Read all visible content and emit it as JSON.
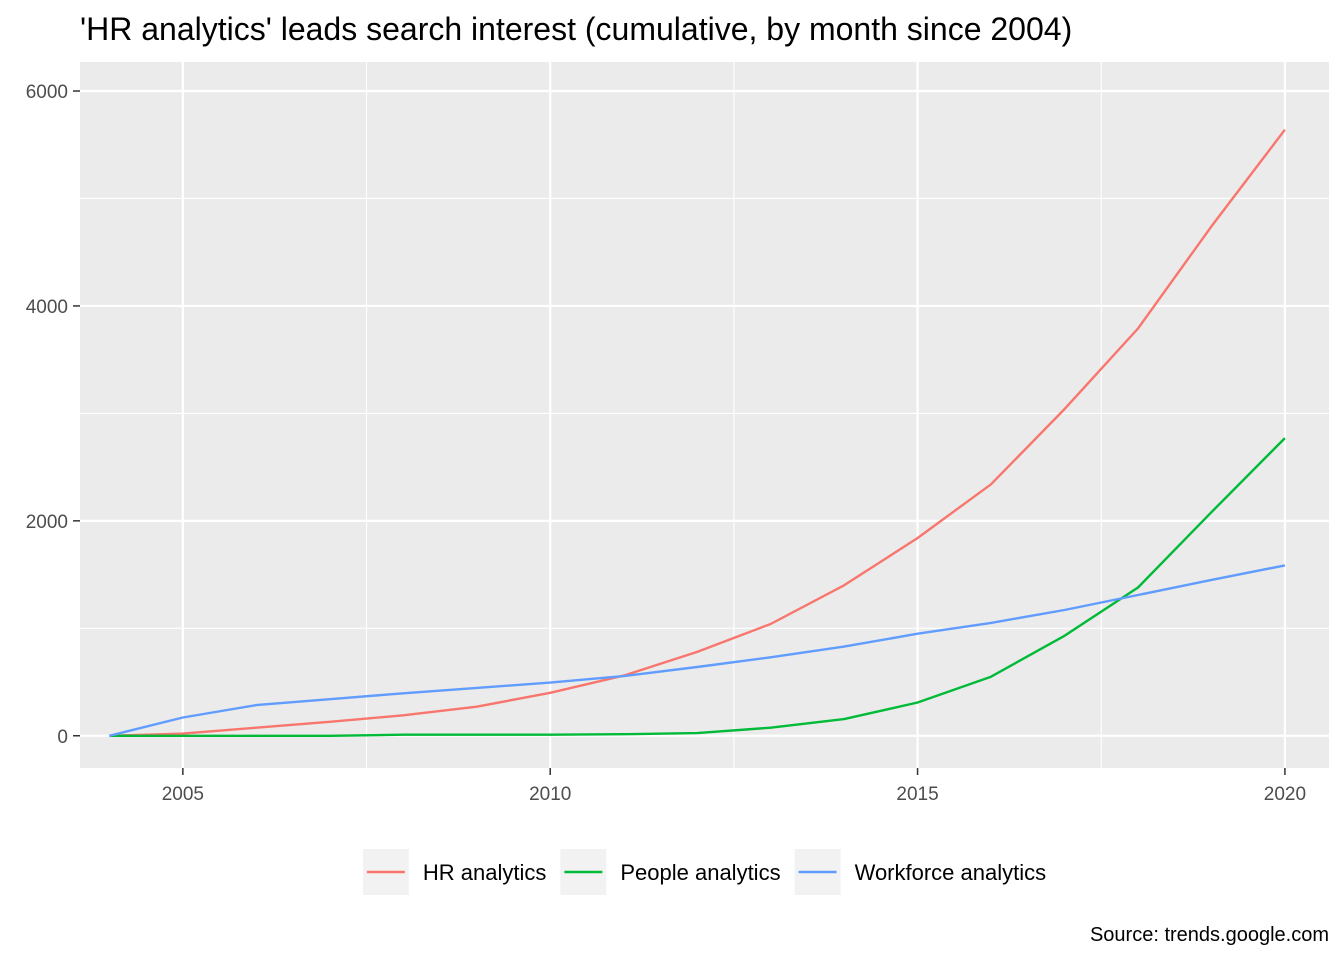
{
  "chart_data": {
    "type": "line",
    "title": "'HR analytics' leads search interest (cumulative, by month since 2004)",
    "caption": "Source: trends.google.com",
    "xlabel": "",
    "ylabel": "",
    "xlim": [
      2003.6,
      2020.6
    ],
    "ylim": [
      -300,
      6270
    ],
    "x_ticks": [
      2005,
      2010,
      2015,
      2020
    ],
    "x_tick_labels": [
      "2005",
      "2010",
      "2015",
      "2020"
    ],
    "y_ticks": [
      0,
      2000,
      4000,
      6000
    ],
    "y_tick_labels": [
      "0",
      "2000",
      "4000",
      "6000"
    ],
    "grid": true,
    "legend_position": "bottom",
    "x": [
      2004,
      2005,
      2006,
      2007,
      2008,
      2009,
      2010,
      2011,
      2012,
      2013,
      2014,
      2015,
      2016,
      2017,
      2018,
      2019,
      2020
    ],
    "series": [
      {
        "name": "HR analytics",
        "color": "#F8766D",
        "values": [
          0,
          20,
          75,
          130,
          190,
          270,
          400,
          560,
          780,
          1040,
          1400,
          1840,
          2340,
          3040,
          3790,
          4740,
          5640
        ]
      },
      {
        "name": "People analytics",
        "color": "#00BA38",
        "values": [
          0,
          0,
          0,
          0,
          10,
          10,
          10,
          15,
          25,
          75,
          155,
          310,
          550,
          930,
          1380,
          2080,
          2770
        ]
      },
      {
        "name": "Workforce analytics",
        "color": "#619CFF",
        "values": [
          0,
          170,
          285,
          340,
          395,
          445,
          495,
          555,
          640,
          730,
          830,
          950,
          1050,
          1170,
          1310,
          1450,
          1585
        ]
      }
    ]
  }
}
